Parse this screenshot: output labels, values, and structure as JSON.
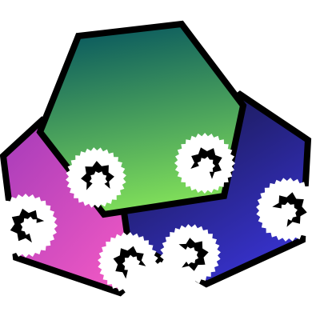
{
  "canvas": {
    "background": "#ffffff"
  },
  "shapes": [
    {
      "name": "magenta-hexagon",
      "gradient": [
        "#a43bb9",
        "#ff5ec6"
      ],
      "outline_color": "#000000"
    },
    {
      "name": "navy-hexagon",
      "gradient": [
        "#171746",
        "#3a34d8"
      ],
      "outline_color": "#000000"
    },
    {
      "name": "green-hexagon",
      "gradient": [
        "#08575e",
        "#83e25a"
      ],
      "outline_color": "#000000"
    }
  ],
  "eyes": [
    {
      "name": "eye-magenta-left",
      "glyph": "spiky-eye",
      "color": "#000000"
    },
    {
      "name": "eye-magenta-bottom",
      "glyph": "spiky-eye",
      "color": "#000000"
    },
    {
      "name": "eye-green-left",
      "glyph": "spiky-eye",
      "color": "#000000"
    },
    {
      "name": "eye-green-right",
      "glyph": "spiky-eye",
      "color": "#000000"
    },
    {
      "name": "eye-navy-right",
      "glyph": "spiky-eye",
      "color": "#000000"
    },
    {
      "name": "eye-navy-bottom",
      "glyph": "spiky-eye",
      "color": "#000000"
    }
  ]
}
